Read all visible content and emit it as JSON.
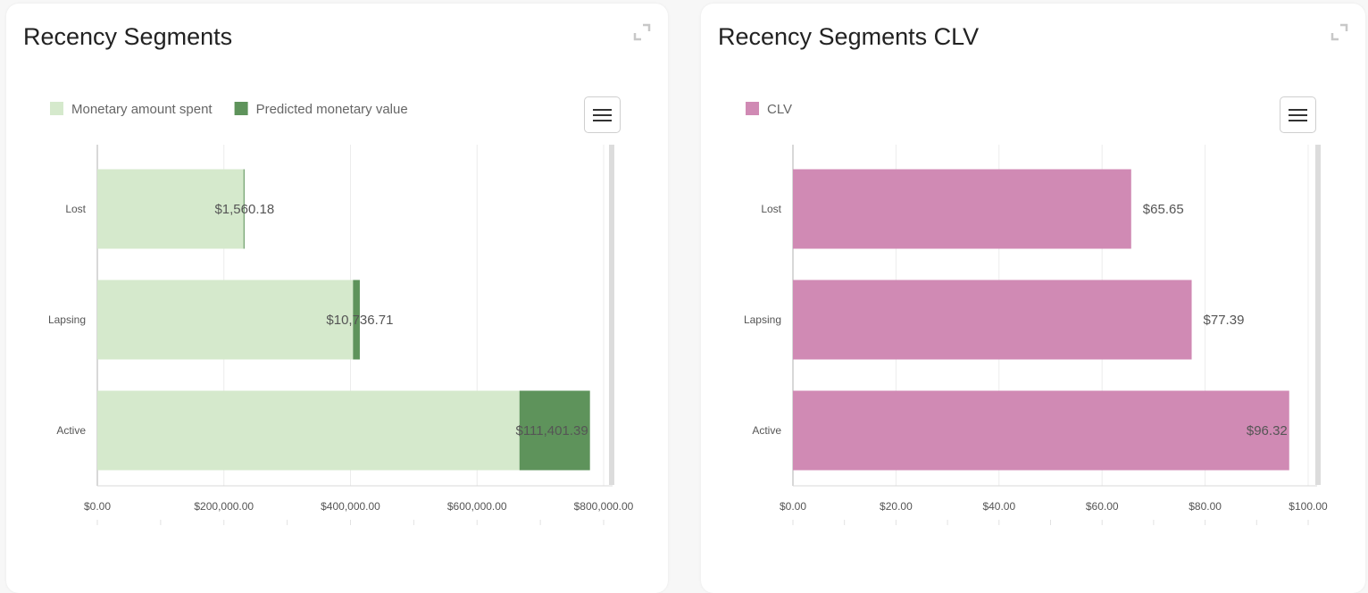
{
  "charts": [
    {
      "title": "Recency Segments",
      "expand_icon": "expand-icon",
      "menu_icon": "hamburger-menu-icon"
    },
    {
      "title": "Recency Segments CLV",
      "expand_icon": "expand-icon",
      "menu_icon": "hamburger-menu-icon"
    }
  ],
  "chart_data": [
    {
      "type": "bar",
      "orientation": "horizontal",
      "stacked": true,
      "title": "Recency Segments",
      "categories": [
        "Lost",
        "Lapsing",
        "Active"
      ],
      "series": [
        {
          "name": "Monetary amount spent",
          "color": "#d5e9cc",
          "values": [
            231000,
            404000,
            667000
          ]
        },
        {
          "name": "Predicted monetary value",
          "color": "#5e935b",
          "values": [
            1560.18,
            10736.71,
            111401.39
          ]
        }
      ],
      "data_labels": [
        "$1,560.18",
        "$10,736.71",
        "$111,401.39"
      ],
      "xlim": [
        0,
        800000
      ],
      "ticks": [
        0,
        200000,
        400000,
        600000,
        800000
      ],
      "tick_labels": [
        "$0.00",
        "$200,000.00",
        "$400,000.00",
        "$600,000.00",
        "$800,000.00"
      ],
      "legend_position": "top-left",
      "grid": true
    },
    {
      "type": "bar",
      "orientation": "horizontal",
      "title": "Recency Segments CLV",
      "categories": [
        "Lost",
        "Lapsing",
        "Active"
      ],
      "series": [
        {
          "name": "CLV",
          "color": "#d08ab4",
          "values": [
            65.65,
            77.39,
            96.32
          ]
        }
      ],
      "data_labels": [
        "$65.65",
        "$77.39",
        "$96.32"
      ],
      "xlim": [
        0,
        100
      ],
      "ticks": [
        0,
        20,
        40,
        60,
        80,
        100
      ],
      "tick_labels": [
        "$0.00",
        "$20.00",
        "$40.00",
        "$60.00",
        "$80.00",
        "$100.00"
      ],
      "legend_position": "top-left",
      "grid": true
    }
  ]
}
